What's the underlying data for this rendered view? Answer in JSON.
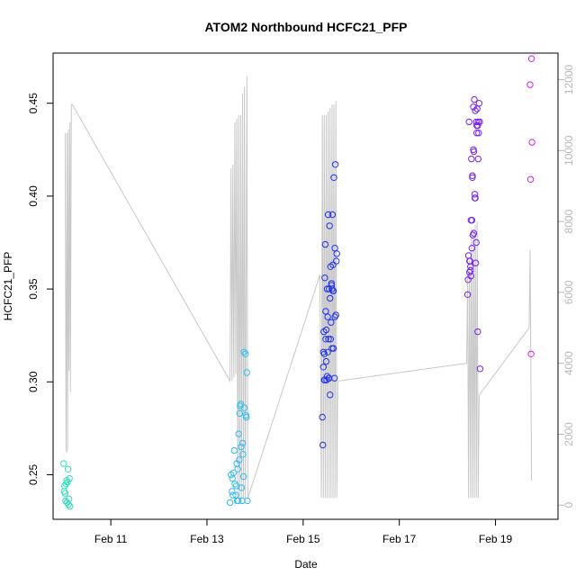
{
  "chart_data": {
    "type": "scatter",
    "title": "ATOM2 Northbound HCFC21_PFP",
    "xlabel": "Date",
    "ylabel": "HCFC21_PFP",
    "xlim": [
      9.8,
      20.3
    ],
    "ylim": [
      0.226,
      0.477
    ],
    "y2lim": [
      -400,
      12750
    ],
    "x_ticks": [
      {
        "value": 11,
        "label": "Feb 11"
      },
      {
        "value": 13,
        "label": "Feb 13"
      },
      {
        "value": 15,
        "label": "Feb 15"
      },
      {
        "value": 17,
        "label": "Feb 17"
      },
      {
        "value": 19,
        "label": "Feb 19"
      }
    ],
    "y_ticks": [
      0.25,
      0.3,
      0.35,
      0.4,
      0.45
    ],
    "y_tick_labels": [
      "0.25",
      "0.30",
      "0.35",
      "0.40",
      "0.45"
    ],
    "y2_ticks": [
      0,
      2000,
      4000,
      6000,
      8000,
      10000,
      12000
    ],
    "y2_tick_labels": [
      "0",
      "2000",
      "4000",
      "6000",
      "8000",
      "10000",
      "12000"
    ],
    "colors": {
      "altitude_line": "#c8c8c8",
      "flight1": "#33ddbb",
      "flight2": "#33bbee",
      "flight3": "#2233ee",
      "flight4": "#7722ee",
      "flight5": "#cc22ee"
    },
    "altitude_line": [
      [
        10.05,
        10500
      ],
      [
        10.07,
        1500
      ],
      [
        10.09,
        10500
      ],
      [
        10.1,
        1500
      ],
      [
        10.12,
        10600
      ],
      [
        10.13,
        3800
      ],
      [
        10.15,
        10800
      ],
      [
        10.16,
        3200
      ],
      [
        10.18,
        11300
      ],
      [
        10.2,
        11300
      ],
      [
        13.48,
        3500
      ],
      [
        13.5,
        9500
      ],
      [
        13.52,
        3500
      ],
      [
        13.54,
        9600
      ],
      [
        13.56,
        3600
      ],
      [
        13.58,
        10800
      ],
      [
        13.6,
        3700
      ],
      [
        13.62,
        10900
      ],
      [
        13.64,
        200
      ],
      [
        13.66,
        11000
      ],
      [
        13.68,
        200
      ],
      [
        13.7,
        11000
      ],
      [
        13.72,
        200
      ],
      [
        13.74,
        11600
      ],
      [
        13.76,
        200
      ],
      [
        13.78,
        11800
      ],
      [
        13.8,
        200
      ],
      [
        13.83,
        12100
      ],
      [
        13.85,
        200
      ],
      [
        15.35,
        6500
      ],
      [
        15.38,
        200
      ],
      [
        15.4,
        11000
      ],
      [
        15.42,
        200
      ],
      [
        15.44,
        11000
      ],
      [
        15.46,
        200
      ],
      [
        15.48,
        11000
      ],
      [
        15.5,
        200
      ],
      [
        15.52,
        11100
      ],
      [
        15.54,
        200
      ],
      [
        15.56,
        11200
      ],
      [
        15.58,
        200
      ],
      [
        15.6,
        11300
      ],
      [
        15.62,
        200
      ],
      [
        15.64,
        11300
      ],
      [
        15.66,
        200
      ],
      [
        15.68,
        11400
      ],
      [
        15.7,
        200
      ],
      [
        15.72,
        3500
      ],
      [
        18.4,
        4000
      ],
      [
        18.42,
        6500
      ],
      [
        18.44,
        200
      ],
      [
        18.46,
        6900
      ],
      [
        18.48,
        200
      ],
      [
        18.5,
        7800
      ],
      [
        18.52,
        200
      ],
      [
        18.54,
        7800
      ],
      [
        18.56,
        200
      ],
      [
        18.58,
        7900
      ],
      [
        18.6,
        200
      ],
      [
        18.62,
        8000
      ],
      [
        18.64,
        200
      ],
      [
        18.66,
        3100
      ],
      [
        19.7,
        5000
      ],
      [
        19.72,
        7200
      ],
      [
        19.75,
        700
      ]
    ],
    "series": [
      {
        "x": [
          10.02,
          10.04,
          10.05,
          10.06,
          10.08,
          10.09,
          10.11,
          10.12,
          10.14,
          10.15,
          10.03,
          10.07,
          10.1,
          10.13
        ],
        "y": [
          0.256,
          0.244,
          0.24,
          0.236,
          0.247,
          0.235,
          0.253,
          0.234,
          0.248,
          0.233,
          0.241,
          0.245,
          0.246,
          0.237
        ]
      },
      {
        "x": [
          13.48,
          13.5,
          13.52,
          13.54,
          13.55,
          13.57,
          13.58,
          13.6,
          13.62,
          13.63,
          13.64,
          13.65,
          13.66,
          13.67,
          13.68,
          13.7,
          13.71,
          13.72,
          13.73,
          13.74,
          13.75,
          13.76,
          13.77,
          13.78,
          13.8,
          13.81,
          13.82,
          13.83,
          13.84,
          13.53,
          13.61,
          13.69
        ],
        "y": [
          0.235,
          0.25,
          0.241,
          0.239,
          0.251,
          0.263,
          0.245,
          0.239,
          0.256,
          0.236,
          0.253,
          0.236,
          0.272,
          0.258,
          0.283,
          0.288,
          0.265,
          0.243,
          0.236,
          0.267,
          0.261,
          0.249,
          0.316,
          0.286,
          0.315,
          0.282,
          0.281,
          0.305,
          0.236,
          0.248,
          0.244,
          0.287
        ]
      },
      {
        "x": [
          15.4,
          15.41,
          15.42,
          15.43,
          15.44,
          15.45,
          15.46,
          15.47,
          15.48,
          15.49,
          15.5,
          15.51,
          15.52,
          15.53,
          15.54,
          15.55,
          15.56,
          15.57,
          15.58,
          15.59,
          15.6,
          15.61,
          15.62,
          15.63,
          15.64,
          15.65,
          15.66,
          15.67,
          15.68,
          15.69,
          15.7,
          15.42,
          15.45,
          15.48,
          15.51,
          15.54,
          15.57,
          15.6,
          15.63,
          15.66,
          15.44,
          15.47,
          15.5,
          15.53,
          15.56,
          15.59,
          15.62
        ],
        "y": [
          0.281,
          0.266,
          0.316,
          0.327,
          0.301,
          0.356,
          0.374,
          0.338,
          0.311,
          0.301,
          0.303,
          0.335,
          0.39,
          0.323,
          0.302,
          0.384,
          0.293,
          0.323,
          0.332,
          0.353,
          0.318,
          0.39,
          0.363,
          0.349,
          0.41,
          0.302,
          0.372,
          0.417,
          0.336,
          0.365,
          0.369,
          0.308,
          0.301,
          0.328,
          0.316,
          0.35,
          0.362,
          0.35,
          0.318,
          0.335,
          0.315,
          0.323,
          0.35,
          0.302,
          0.345,
          0.352,
          0.349
        ]
      },
      {
        "x": [
          18.42,
          18.43,
          18.44,
          18.45,
          18.46,
          18.47,
          18.48,
          18.49,
          18.5,
          18.51,
          18.52,
          18.53,
          18.54,
          18.55,
          18.56,
          18.57,
          18.58,
          18.59,
          18.6,
          18.61,
          18.62,
          18.63,
          18.64,
          18.65,
          18.66,
          18.67,
          18.68,
          18.46,
          18.49,
          18.52,
          18.55,
          18.58,
          18.61,
          18.64,
          18.48,
          18.51,
          18.54,
          18.57,
          18.6,
          18.63
        ],
        "y": [
          0.347,
          0.355,
          0.368,
          0.44,
          0.359,
          0.365,
          0.36,
          0.357,
          0.42,
          0.387,
          0.411,
          0.379,
          0.448,
          0.424,
          0.452,
          0.401,
          0.399,
          0.364,
          0.375,
          0.434,
          0.447,
          0.327,
          0.42,
          0.434,
          0.45,
          0.44,
          0.307,
          0.365,
          0.387,
          0.41,
          0.38,
          0.446,
          0.438,
          0.44,
          0.362,
          0.372,
          0.425,
          0.399,
          0.44,
          0.438
        ]
      },
      {
        "x": [
          19.72,
          19.73,
          19.74,
          19.75,
          19.76
        ],
        "y": [
          0.46,
          0.409,
          0.315,
          0.474,
          0.429
        ]
      }
    ]
  }
}
